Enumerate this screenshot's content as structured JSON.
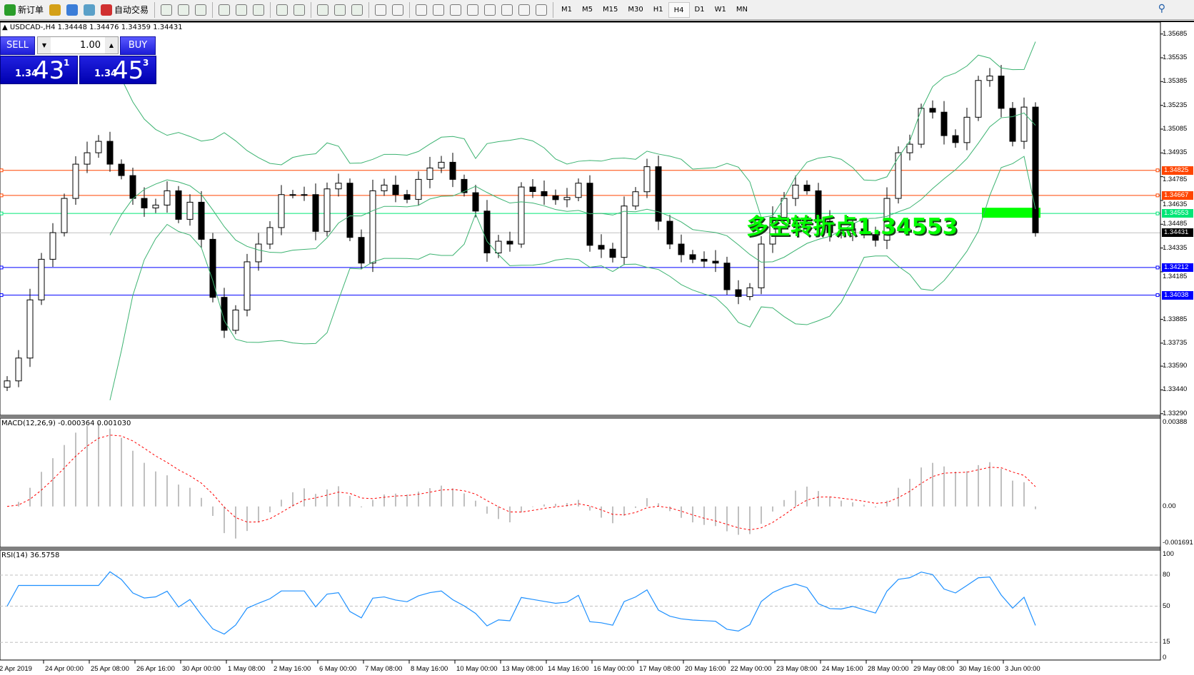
{
  "toolbar": {
    "items": [
      {
        "icon": "new-order-icon",
        "label": "新订单"
      },
      {
        "icon": "history-center-icon",
        "label": ""
      },
      {
        "icon": "market-watch-icon",
        "label": ""
      },
      {
        "icon": "signals-icon",
        "label": ""
      },
      {
        "icon": "auto-trading-icon",
        "label": "自动交易"
      }
    ],
    "chart_tools": [
      "bar-chart-icon",
      "candlestick-icon",
      "line-chart-icon",
      "zoom-in-icon",
      "zoom-out-icon",
      "tile-windows-icon",
      "chart-shift-icon",
      "autoscroll-icon",
      "indicators-icon",
      "periods-icon",
      "templates-icon",
      "cursor-icon",
      "crosshair-icon",
      "vertical-line-icon",
      "horizontal-line-icon",
      "trendline-icon",
      "equidistant-channel-icon",
      "fibonacci-icon",
      "text-icon",
      "text-label-icon",
      "arrows-icon"
    ],
    "timeframes": [
      "M1",
      "M5",
      "M15",
      "M30",
      "H1",
      "H4",
      "D1",
      "W1",
      "MN"
    ],
    "active_timeframe": "H4"
  },
  "chart": {
    "header": "USDCAD-,H4  1.34448 1.34476 1.34359 1.34431",
    "sell_label": "SELL",
    "buy_label": "BUY",
    "lots": "1.00",
    "sell_price": {
      "prefix": "1.34",
      "big": "43",
      "sup": "1"
    },
    "buy_price": {
      "prefix": "1.34",
      "big": "45",
      "sup": "3"
    },
    "annotation": "多空转折点1.34553",
    "macd_label": "MACD(12,26,9) -0.000364 0.001030",
    "rsi_label": "RSI(14) 36.5758"
  },
  "chart_data": {
    "type": "candlestick",
    "symbol": "USDCAD-",
    "timeframe": "H4",
    "ylim": [
      1.3328,
      1.3576
    ],
    "price_ticks": [
      "1.35685",
      "1.35535",
      "1.35385",
      "1.35235",
      "1.35085",
      "1.34935",
      "1.34785",
      "1.34635",
      "1.34485",
      "1.34335",
      "1.34185",
      "1.33885",
      "1.33735",
      "1.33590",
      "1.33440",
      "1.33290"
    ],
    "closes": [
      1.33497,
      1.33641,
      1.34008,
      1.34264,
      1.34432,
      1.34648,
      1.34864,
      1.34936,
      1.35008,
      1.34864,
      1.34792,
      1.34648,
      1.34588,
      1.34606,
      1.34696,
      1.34516,
      1.34624,
      1.3439,
      1.34024,
      1.33816,
      1.33944,
      1.34248,
      1.3436,
      1.34464,
      1.34672,
      1.34672,
      1.34672,
      1.3444,
      1.34708,
      1.34744,
      1.34402,
      1.3424,
      1.34696,
      1.34732,
      1.34672,
      1.34642,
      1.34768,
      1.3484,
      1.34876,
      1.34768,
      1.34684,
      1.34568,
      1.34304,
      1.34378,
      1.3436,
      1.3472,
      1.34691,
      1.34664,
      1.3464,
      1.34654,
      1.34744,
      1.34352,
      1.34328,
      1.34276,
      1.346,
      1.3469,
      1.34848,
      1.34504,
      1.3436,
      1.34293,
      1.34264,
      1.34252,
      1.3424,
      1.34072,
      1.34029,
      1.34084,
      1.3436,
      1.34528,
      1.34648,
      1.34732,
      1.34696,
      1.34504,
      1.34432,
      1.34427,
      1.34456,
      1.3442,
      1.34384,
      1.34648,
      1.34936,
      1.3499,
      1.35216,
      1.35192,
      1.35044,
      1.35,
      1.3516,
      1.35392,
      1.3542,
      1.35216,
      1.35008,
      1.35224,
      1.34431
    ],
    "levels": [
      {
        "price": "1.34825",
        "color": "#ff4500"
      },
      {
        "price": "1.34667",
        "color": "#ff4500"
      },
      {
        "price": "1.34553",
        "color": "#00e676"
      },
      {
        "price": "1.34431",
        "color": "#000000",
        "line": "#c0c0c0"
      },
      {
        "price": "1.34212",
        "color": "#0000ff"
      },
      {
        "price": "1.34038",
        "color": "#0000ff"
      }
    ],
    "bands_color": "#3cb371",
    "macd": {
      "ylim": [
        -0.001691,
        0.00388
      ],
      "ticks": [
        "0.00388",
        "0.00",
        "-0.001691"
      ],
      "hist_color": "#c0c0c0",
      "signal_color": "#ff0000"
    },
    "rsi": {
      "ylim": [
        0,
        100
      ],
      "levels": [
        "80",
        "50",
        "15"
      ],
      "ticks": [
        "100",
        "80",
        "50",
        "15",
        "0"
      ],
      "color": "#1e90ff"
    },
    "x_labels": [
      "2 Apr 2019",
      "24 Apr 00:00",
      "25 Apr 08:00",
      "26 Apr 16:00",
      "30 Apr 00:00",
      "1 May 08:00",
      "2 May 16:00",
      "6 May 00:00",
      "7 May 08:00",
      "8 May 16:00",
      "10 May 00:00",
      "13 May 08:00",
      "14 May 16:00",
      "16 May 00:00",
      "17 May 08:00",
      "20 May 16:00",
      "22 May 00:00",
      "23 May 08:00",
      "24 May 16:00",
      "28 May 00:00",
      "29 May 08:00",
      "30 May 16:00",
      "3 Jun 00:00"
    ]
  }
}
